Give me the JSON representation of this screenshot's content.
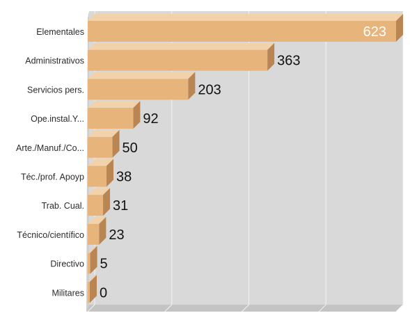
{
  "chart_data": {
    "type": "bar",
    "orientation": "horizontal",
    "categories": [
      "Elementales",
      "Administrativos",
      "Servicios pers.",
      "Ope.instal.Y...",
      "Arte./Manuf./Co...",
      "Téc./prof. Apoyp",
      "Trab. Cual.",
      "Técnico/científico",
      "Directivo",
      "Militares"
    ],
    "values": [
      623,
      363,
      203,
      92,
      50,
      38,
      31,
      23,
      5,
      0
    ],
    "data_labels": [
      "623",
      "363",
      "203",
      "92",
      "50",
      "38",
      "31",
      "23",
      "5",
      "0"
    ],
    "xlim": [
      0,
      623
    ],
    "grid": true,
    "legend": "none",
    "colors": {
      "bar_front": "#e7b47c",
      "bar_top": "#f2d2ab",
      "bar_side": "#b98552",
      "plot_bg": "#d9d9d9",
      "floor": "#c4c4c4",
      "gridline": "#f3f3f3"
    }
  }
}
